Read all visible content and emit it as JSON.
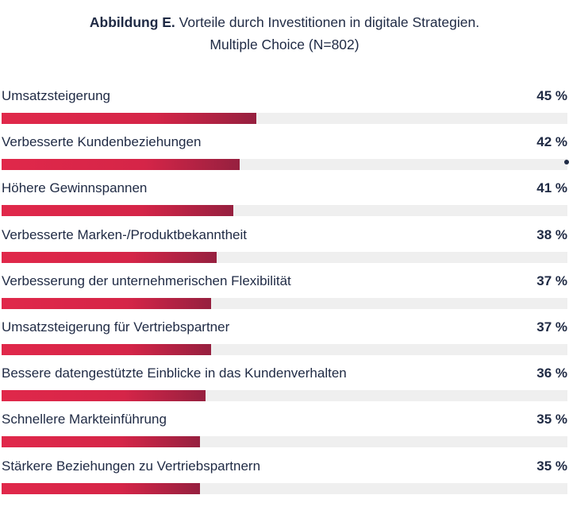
{
  "title": {
    "bold": "Abbildung E.",
    "text": "Vorteile durch Investitionen in digitale Strategien.",
    "subtitle": "Multiple Choice (N=802)"
  },
  "colors": {
    "bar_start": "#e0284a",
    "bar_end": "#96203f",
    "track": "#efefef",
    "text": "#1f2a44"
  },
  "chart_data": {
    "type": "bar",
    "orientation": "horizontal",
    "title": "Abbildung E. Vorteile durch Investitionen in digitale Strategien.",
    "subtitle": "Multiple Choice (N=802)",
    "xlim": [
      0,
      100
    ],
    "grid": false,
    "categories": [
      "Umsatzsteigerung",
      "Verbesserte Kundenbeziehungen",
      "Höhere Gewinnspannen",
      "Verbesserte Marken-/Produktbekanntheit",
      "Verbesserung der unternehmerischen Flexibilität",
      "Umsatzsteigerung für Vertriebspartner",
      "Bessere datengestützte Einblicke in das Kundenverhalten",
      "Schnellere Markteinführung",
      "Stärkere Beziehungen zu Vertriebspartnern"
    ],
    "values": [
      45,
      42,
      41,
      38,
      37,
      37,
      36,
      35,
      35
    ],
    "value_labels": [
      "45 %",
      "42 %",
      "41 %",
      "38 %",
      "37 %",
      "37 %",
      "36 %",
      "35 %",
      "35 %"
    ]
  }
}
